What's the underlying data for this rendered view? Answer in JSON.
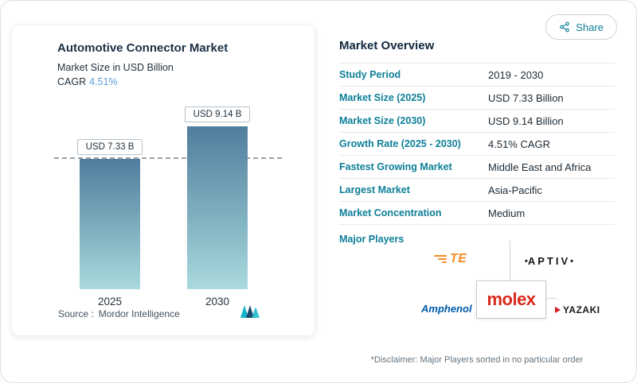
{
  "share": {
    "label": "Share"
  },
  "left_card": {
    "title": "Automotive Connector Market",
    "subtitle": "Market Size in USD Billion",
    "cagr_label": "CAGR",
    "cagr_value": "4.51%",
    "source_prefix": "Source :",
    "source_name": "Mordor Intelligence"
  },
  "chart_data": {
    "type": "bar",
    "title": "Automotive Connector Market",
    "subtitle": "Market Size in USD Billion",
    "categories": [
      "2025",
      "2030"
    ],
    "values": [
      7.33,
      9.14
    ],
    "bar_labels": [
      "USD 7.33 B",
      "USD 9.14 B"
    ],
    "ylabel": "USD Billion",
    "ylim": [
      0,
      10.3
    ],
    "reference_line": 7.33,
    "grid": false,
    "legend": "none"
  },
  "overview": {
    "heading": "Market Overview",
    "rows": [
      {
        "label": "Study Period",
        "value": "2019 - 2030"
      },
      {
        "label": "Market Size (2025)",
        "value": "USD 7.33 Billion"
      },
      {
        "label": "Market Size (2030)",
        "value": "USD 9.14 Billion"
      },
      {
        "label": "Growth Rate (2025 - 2030)",
        "value": "4.51% CAGR"
      },
      {
        "label": "Fastest Growing Market",
        "value": "Middle East and Africa"
      },
      {
        "label": "Largest Market",
        "value": "Asia-Pacific"
      },
      {
        "label": "Market Concentration",
        "value": "Medium"
      }
    ],
    "major_players_label": "Major Players",
    "players": [
      {
        "name": "TE"
      },
      {
        "name": "APTIV"
      },
      {
        "name": "Amphenol"
      },
      {
        "name": "molex"
      },
      {
        "name": "YAZAKI"
      }
    ],
    "aptiv_dot": "•",
    "disclaimer": "*Disclaimer: Major Players sorted in no particular order"
  },
  "colors": {
    "accent_teal": "#0d7f98",
    "link_blue": "#5b9bd5",
    "bar_gradient_top": "#517d9e",
    "bar_gradient_bottom": "#aadade",
    "te_orange": "#f68b1f",
    "amphenol_blue": "#005aab",
    "molex_red": "#da291c",
    "yazaki_red": "#d61c22"
  }
}
